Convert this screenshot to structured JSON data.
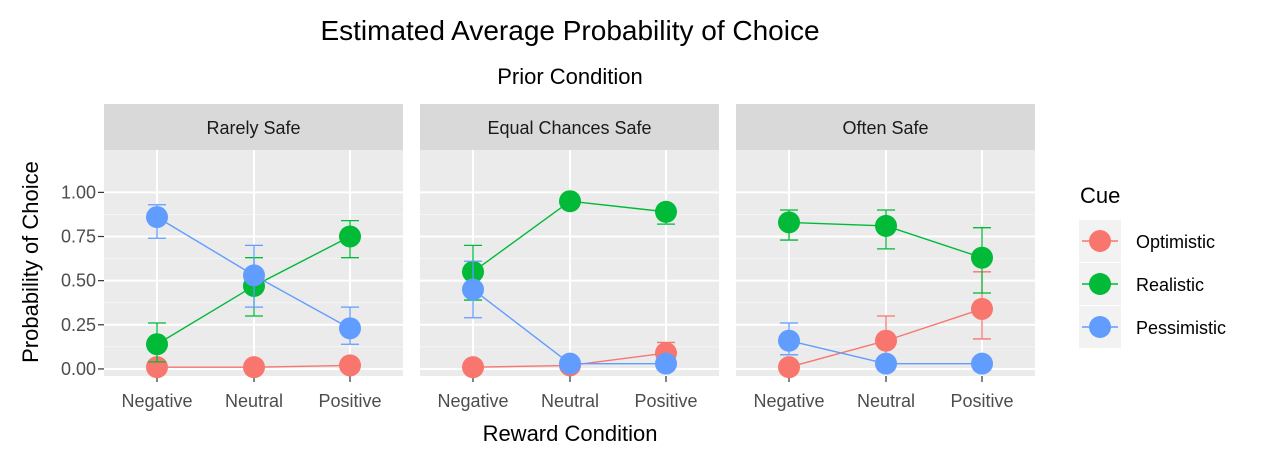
{
  "chart_data": {
    "type": "line",
    "title": "Estimated Average Probability of Choice",
    "subtitle": "Prior Condition",
    "xlabel": "Reward Condition",
    "ylabel": "Probability of Choice",
    "categories": [
      "Negative",
      "Neutral",
      "Positive"
    ],
    "yticks": [
      "0.00",
      "0.25",
      "0.50",
      "0.75",
      "1.00"
    ],
    "ylim": [
      -0.04,
      1.24
    ],
    "grid": true,
    "legend": {
      "title": "Cue",
      "position": "right",
      "items": [
        "Optimistic",
        "Realistic",
        "Pessimistic"
      ]
    },
    "colors": {
      "Optimistic": "#F8766D",
      "Realistic": "#00BA38",
      "Pessimistic": "#619CFF"
    },
    "panels": [
      {
        "label": "Rarely Safe",
        "series": [
          {
            "name": "Optimistic",
            "values": [
              0.01,
              0.01,
              0.02
            ],
            "lower": [
              null,
              null,
              null
            ],
            "upper": [
              null,
              null,
              null
            ]
          },
          {
            "name": "Realistic",
            "values": [
              0.14,
              0.47,
              0.75
            ],
            "lower": [
              0.04,
              0.3,
              0.63
            ],
            "upper": [
              0.26,
              0.63,
              0.84
            ]
          },
          {
            "name": "Pessimistic",
            "values": [
              0.86,
              0.53,
              0.23
            ],
            "lower": [
              0.74,
              0.35,
              0.14
            ],
            "upper": [
              0.93,
              0.7,
              0.35
            ]
          }
        ]
      },
      {
        "label": "Equal Chances Safe",
        "series": [
          {
            "name": "Optimistic",
            "values": [
              0.01,
              0.02,
              0.09
            ],
            "lower": [
              null,
              null,
              0.04
            ],
            "upper": [
              null,
              null,
              0.15
            ]
          },
          {
            "name": "Realistic",
            "values": [
              0.55,
              0.95,
              0.89
            ],
            "lower": [
              0.39,
              null,
              0.82
            ],
            "upper": [
              0.7,
              null,
              0.92
            ]
          },
          {
            "name": "Pessimistic",
            "values": [
              0.45,
              0.03,
              0.03
            ],
            "lower": [
              0.29,
              null,
              null
            ],
            "upper": [
              0.61,
              null,
              null
            ]
          }
        ]
      },
      {
        "label": "Often Safe",
        "series": [
          {
            "name": "Optimistic",
            "values": [
              0.01,
              0.16,
              0.34
            ],
            "lower": [
              null,
              0.06,
              0.17
            ],
            "upper": [
              null,
              0.3,
              0.55
            ]
          },
          {
            "name": "Realistic",
            "values": [
              0.83,
              0.81,
              0.63
            ],
            "lower": [
              0.73,
              0.68,
              0.43
            ],
            "upper": [
              0.9,
              0.9,
              0.8
            ]
          },
          {
            "name": "Pessimistic",
            "values": [
              0.16,
              0.03,
              0.03
            ],
            "lower": [
              0.08,
              null,
              null
            ],
            "upper": [
              0.26,
              null,
              null
            ]
          }
        ]
      }
    ]
  }
}
